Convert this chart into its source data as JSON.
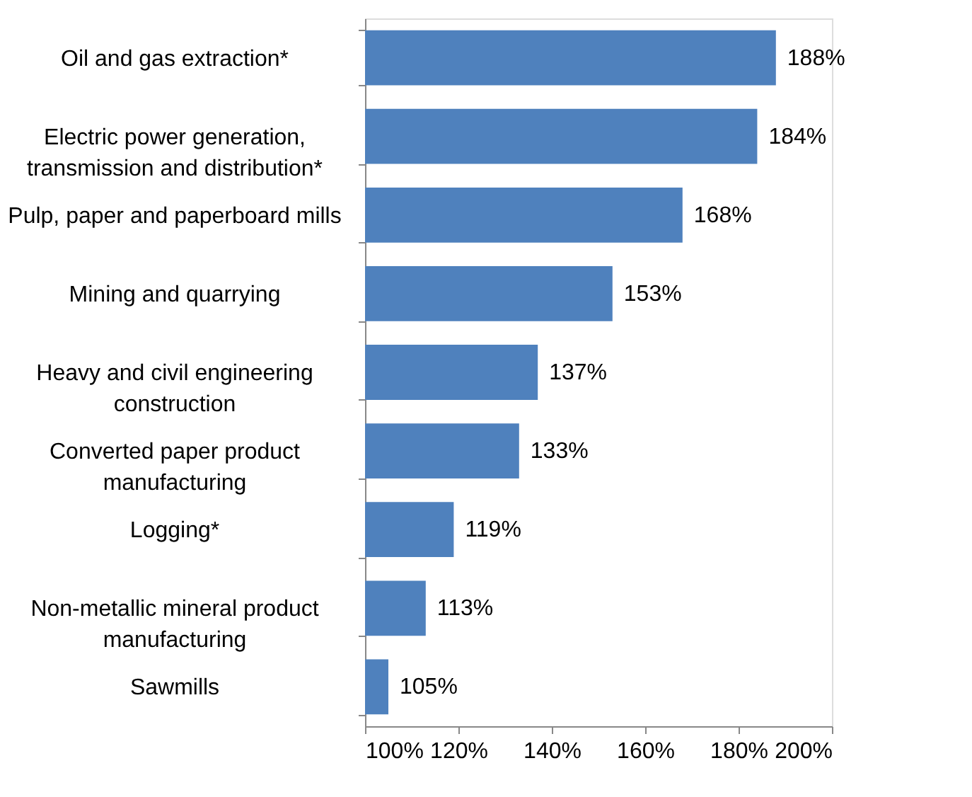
{
  "chart_data": {
    "type": "bar",
    "orientation": "horizontal",
    "categories": [
      "Oil and gas extraction*",
      "Electric power generation,\ntransmission and distribution*",
      "Pulp, paper and paperboard mills",
      "Mining and quarrying",
      "Heavy and civil engineering\nconstruction",
      "Converted paper product\nmanufacturing",
      "Logging*",
      "Non-metallic mineral product\nmanufacturing",
      "Sawmills"
    ],
    "values": [
      188,
      184,
      168,
      153,
      137,
      133,
      119,
      113,
      105
    ],
    "value_labels": [
      "188%",
      "184%",
      "168%",
      "153%",
      "137%",
      "133%",
      "119%",
      "113%",
      "105%"
    ],
    "color": "#4f81bd",
    "xlim": [
      100,
      200
    ],
    "xticks": [
      {
        "value": 100,
        "label": "100%"
      },
      {
        "value": 120,
        "label": "120%"
      },
      {
        "value": 140,
        "label": "140%"
      },
      {
        "value": 160,
        "label": "160%"
      },
      {
        "value": 180,
        "label": "180%"
      },
      {
        "value": 200,
        "label": "200%"
      }
    ],
    "grid": false
  }
}
